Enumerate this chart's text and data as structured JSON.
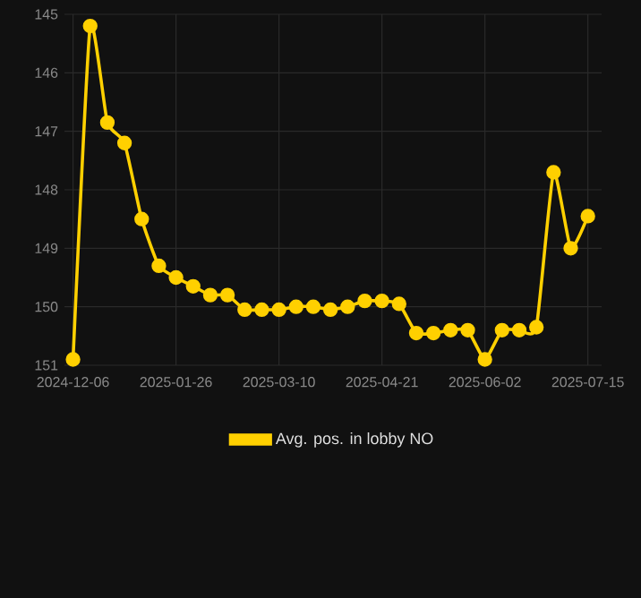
{
  "chart_data": {
    "type": "line",
    "categories": [
      "2024-12-06",
      null,
      null,
      null,
      null,
      null,
      "2025-01-26",
      null,
      null,
      null,
      null,
      null,
      "2025-03-10",
      null,
      null,
      null,
      null,
      null,
      "2025-04-21",
      null,
      null,
      null,
      null,
      null,
      "2025-06-02",
      null,
      null,
      null,
      null,
      null,
      "2025-07-15"
    ],
    "series": [
      {
        "name": "Avg. pos. in lobby NO",
        "color": "#ffd000",
        "values": [
          150.9,
          145.2,
          146.85,
          147.2,
          148.5,
          149.3,
          149.5,
          149.65,
          149.8,
          149.8,
          150.05,
          150.05,
          150.05,
          150.0,
          150.0,
          150.05,
          150.0,
          149.9,
          149.9,
          149.95,
          150.45,
          150.45,
          150.4,
          150.4,
          150.9,
          150.4,
          150.4,
          150.35,
          147.7,
          149.0,
          148.45
        ]
      }
    ],
    "ylim": [
      151,
      145
    ],
    "yticks": [
      145,
      146,
      147,
      148,
      149,
      150,
      151
    ],
    "grid": true,
    "legend": "bottom",
    "marker": "circle",
    "line_style": "solid"
  }
}
